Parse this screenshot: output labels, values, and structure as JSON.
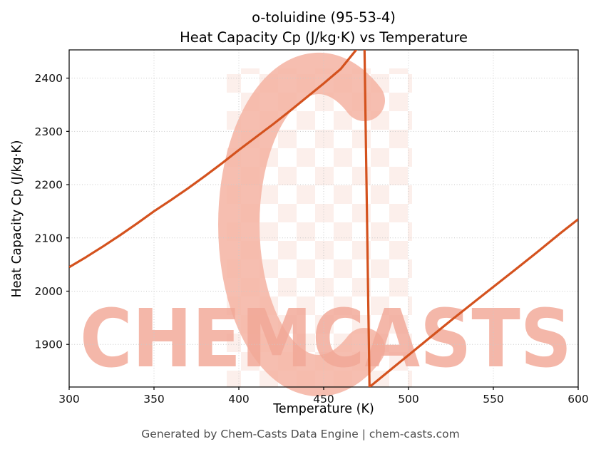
{
  "watermark": {
    "text": "CHEMCASTS"
  },
  "footer": {
    "text": "Generated by Chem-Casts Data Engine | chem-casts.com"
  },
  "chart_data": {
    "type": "line",
    "title": "o-toluidine (95-53-4)",
    "subtitle": "Heat Capacity Cp (J/kg·K) vs Temperature",
    "xlabel": "Temperature (K)",
    "ylabel": "Heat Capacity Cp (J/kg·K)",
    "xlim": [
      300,
      600
    ],
    "ylim": [
      1820,
      2453
    ],
    "x_ticks": [
      300,
      350,
      400,
      450,
      500,
      550,
      600
    ],
    "y_ticks": [
      1900,
      2000,
      2100,
      2200,
      2300,
      2400
    ],
    "grid": true,
    "legend": false,
    "line_color": "#d4521e",
    "watermark_colors": {
      "logo": "#f4b3a2",
      "text": "#f2a897",
      "checker": "#f9e2db"
    },
    "series": [
      {
        "name": "Heat Capacity Cp",
        "points": [
          [
            300,
            2045
          ],
          [
            310,
            2064
          ],
          [
            320,
            2084
          ],
          [
            330,
            2105
          ],
          [
            340,
            2127
          ],
          [
            350,
            2150
          ],
          [
            360,
            2171
          ],
          [
            370,
            2193
          ],
          [
            380,
            2216
          ],
          [
            390,
            2240
          ],
          [
            400,
            2265
          ],
          [
            410,
            2289
          ],
          [
            420,
            2313
          ],
          [
            430,
            2338
          ],
          [
            440,
            2364
          ],
          [
            450,
            2390
          ],
          [
            460,
            2417
          ],
          [
            474,
            2472
          ],
          [
            477,
            1820
          ],
          [
            490,
            1854
          ],
          [
            500,
            1880
          ],
          [
            510,
            1906
          ],
          [
            525,
            1945
          ],
          [
            540,
            1983
          ],
          [
            550,
            2008
          ],
          [
            560,
            2033
          ],
          [
            575,
            2071
          ],
          [
            590,
            2110
          ],
          [
            600,
            2135
          ]
        ]
      }
    ]
  }
}
